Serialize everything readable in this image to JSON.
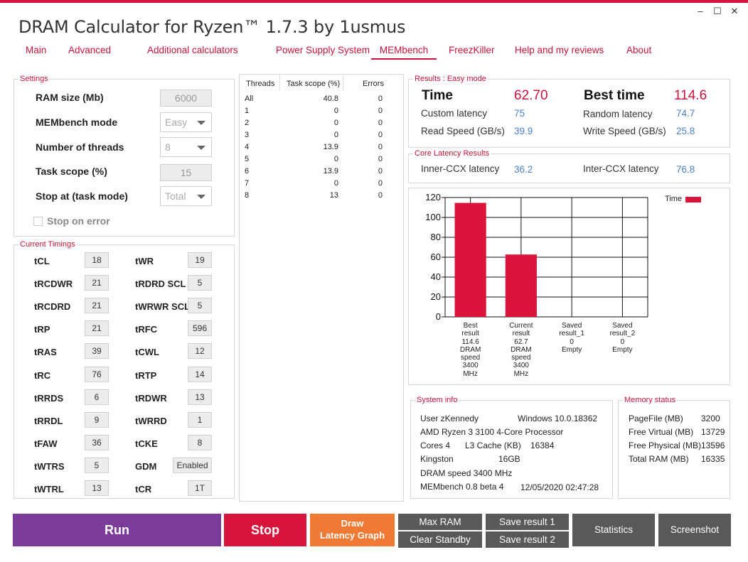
{
  "window": {
    "title": "DRAM Calculator for Ryzen™ 1.7.3 by 1usmus",
    "controls": {
      "minimize": "–",
      "maximize": "☐",
      "close": "✕"
    }
  },
  "tabs": [
    "Main",
    "Advanced",
    "Additional calculators",
    "Power Supply System",
    "MEMbench",
    "FreezKiller",
    "Help and my reviews",
    "About"
  ],
  "active_tab": "MEMbench",
  "settings": {
    "title": "Settings",
    "ram_size_label": "RAM size (Mb)",
    "ram_size_value": "6000",
    "mode_label": "MEMbench mode",
    "mode_value": "Easy",
    "threads_label": "Number of threads",
    "threads_value": "8",
    "scope_label": "Task scope (%)",
    "scope_value": "15",
    "stop_label": "Stop at (task mode)",
    "stop_value": "Total",
    "stop_on_error_label": "Stop on error"
  },
  "timings": {
    "title": "Current Timings",
    "left": [
      {
        "name": "tCL",
        "value": "18"
      },
      {
        "name": "tRCDWR",
        "value": "21"
      },
      {
        "name": "tRCDRD",
        "value": "21"
      },
      {
        "name": "tRP",
        "value": "21"
      },
      {
        "name": "tRAS",
        "value": "39"
      },
      {
        "name": "tRC",
        "value": "76"
      },
      {
        "name": "tRRDS",
        "value": "6"
      },
      {
        "name": "tRRDL",
        "value": "9"
      },
      {
        "name": "tFAW",
        "value": "36"
      },
      {
        "name": "tWTRS",
        "value": "5"
      },
      {
        "name": "tWTRL",
        "value": "13"
      }
    ],
    "right": [
      {
        "name": "tWR",
        "value": "19"
      },
      {
        "name": "tRDRD SCL",
        "value": "5"
      },
      {
        "name": "tWRWR SCL",
        "value": "5"
      },
      {
        "name": "tRFC",
        "value": "596"
      },
      {
        "name": "tCWL",
        "value": "12"
      },
      {
        "name": "tRTP",
        "value": "14"
      },
      {
        "name": "tRDWR",
        "value": "13"
      },
      {
        "name": "tWRRD",
        "value": "1"
      },
      {
        "name": "tCKE",
        "value": "8"
      },
      {
        "name": "GDM",
        "value": "Enabled"
      },
      {
        "name": "tCR",
        "value": "1T"
      }
    ]
  },
  "threads_table": {
    "headers": [
      "Threads",
      "Task scope (%)",
      "Errors"
    ],
    "rows": [
      [
        "All",
        "40.8",
        "0"
      ],
      [
        "1",
        "0",
        "0"
      ],
      [
        "2",
        "0",
        "0"
      ],
      [
        "3",
        "0",
        "0"
      ],
      [
        "4",
        "13.9",
        "0"
      ],
      [
        "5",
        "0",
        "0"
      ],
      [
        "6",
        "13.9",
        "0"
      ],
      [
        "7",
        "0",
        "0"
      ],
      [
        "8",
        "13",
        "0"
      ]
    ]
  },
  "results": {
    "title": "Results : Easy mode",
    "time_label": "Time",
    "time_value": "62.70",
    "best_label": "Best time",
    "best_value": "114.6",
    "custom_latency_label": "Custom latency",
    "custom_latency_value": "75",
    "random_latency_label": "Random latency",
    "random_latency_value": "74.7",
    "read_label": "Read Speed (GB/s)",
    "read_value": "39.9",
    "write_label": "Write Speed (GB/s)",
    "write_value": "25.8"
  },
  "core_latency": {
    "title": "Core Latency Results",
    "inner_label": "Inner-CCX latency",
    "inner_value": "36.2",
    "inter_label": "Inter-CCX latency",
    "inter_value": "76.8"
  },
  "chart_data": {
    "type": "bar",
    "categories": [
      [
        "Best",
        "result",
        "114.6",
        "DRAM",
        "speed",
        "3400",
        "MHz"
      ],
      [
        "Current",
        "result",
        "62.7",
        "DRAM",
        "speed",
        "3400",
        "MHz"
      ],
      [
        "Saved",
        "result_1",
        "0",
        "Empty"
      ],
      [
        "Saved",
        "result_2",
        "0",
        "Empty"
      ]
    ],
    "series": [
      {
        "name": "Time",
        "values": [
          114.6,
          62.7,
          0,
          0
        ]
      }
    ],
    "yticks": [
      "0",
      "20",
      "40",
      "60",
      "80",
      "100",
      "120"
    ],
    "ylim": [
      0,
      120
    ],
    "grid": true,
    "legend": "top-right",
    "bar_color": "#dc143c"
  },
  "system_info": {
    "title": "System info",
    "user": "User zKennedy",
    "os": "Windows 10.0.18362",
    "cpu": "AMD Ryzen 3 3100 4-Core Processor",
    "cores": "Cores 4",
    "l3_label": "L3 Cache (KB)",
    "l3_value": "16384",
    "mem_vendor": "Kingston",
    "mem_size": "16GB",
    "dram_speed": "DRAM speed 3400 MHz",
    "bench_version": "MEMbench 0.8 beta 4",
    "datetime": "12/05/2020 02:47:28"
  },
  "memory_status": {
    "title": "Memory status",
    "rows": [
      [
        "PageFile (MB)",
        "3200"
      ],
      [
        "Free Virtual (MB)",
        "13729"
      ],
      [
        "Free Physical (MB)",
        "13596"
      ],
      [
        "Total RAM (MB)",
        "16335"
      ]
    ]
  },
  "buttons": {
    "run": "Run",
    "stop": "Stop",
    "draw_line1": "Draw",
    "draw_line2": "Latency Graph",
    "max_ram": "Max RAM",
    "clear_standby": "Clear Standby",
    "save1": "Save result 1",
    "save2": "Save result 2",
    "statistics": "Statistics",
    "screenshot": "Screenshot"
  },
  "colors": {
    "accent": "#d7143c",
    "run": "#7b3c99",
    "draw": "#f07a33",
    "gray_button": "#595959",
    "value_blue": "#4a7fd0"
  }
}
